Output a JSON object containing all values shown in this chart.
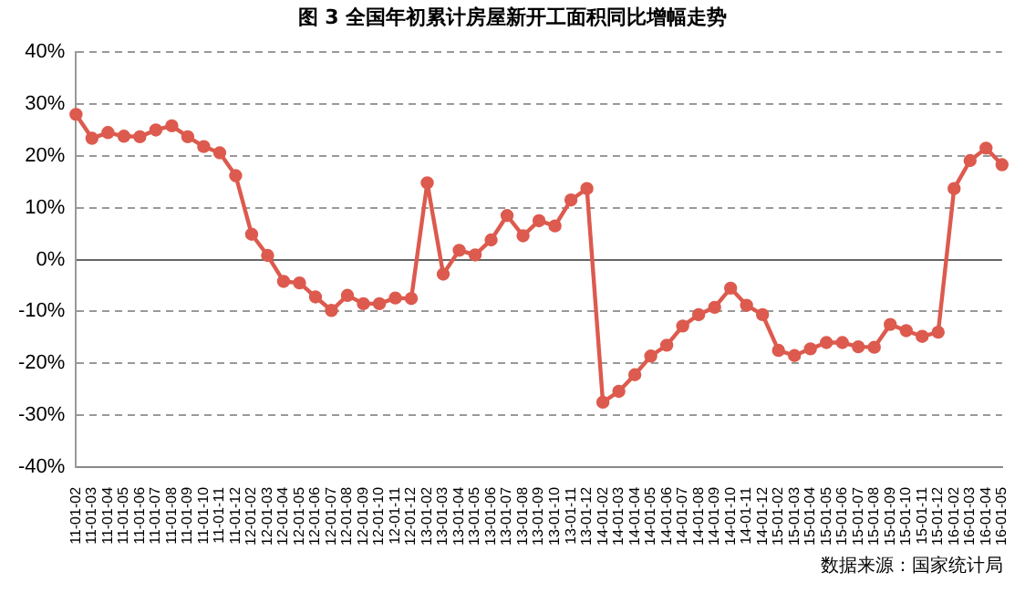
{
  "chart_data": {
    "type": "line",
    "title": "图 3  全国年初累计房屋新开工面积同比增幅走势",
    "categories": [
      "11-01-02",
      "11-01-03",
      "11-01-04",
      "11-01-05",
      "11-01-06",
      "11-01-07",
      "11-01-08",
      "11-01-09",
      "11-01-10",
      "11-01-11",
      "11-01-12",
      "12-01-02",
      "12-01-03",
      "12-01-04",
      "12-01-05",
      "12-01-06",
      "12-01-07",
      "12-01-08",
      "12-01-09",
      "12-01-10",
      "12-01-11",
      "12-01-12",
      "13-01-02",
      "13-01-03",
      "13-01-04",
      "13-01-05",
      "13-01-06",
      "13-01-07",
      "13-01-08",
      "13-01-09",
      "13-01-10",
      "13-01-11",
      "13-01-12",
      "14-01-02",
      "14-01-03",
      "14-01-04",
      "14-01-05",
      "14-01-06",
      "14-01-07",
      "14-01-08",
      "14-01-09",
      "14-01-10",
      "14-01-11",
      "14-01-12",
      "15-01-02",
      "15-01-03",
      "15-01-04",
      "15-01-05",
      "15-01-06",
      "15-01-07",
      "15-01-08",
      "15-01-09",
      "15-01-10",
      "15-01-11",
      "15-01-12",
      "16-01-02",
      "16-01-03",
      "16-01-04",
      "16-01-05"
    ],
    "series": [
      {
        "color": "#dd5a4e",
        "values": [
          28,
          23.4,
          24.5,
          23.8,
          23.7,
          25,
          25.8,
          23.7,
          21.8,
          20.6,
          16.2,
          4.9,
          0.8,
          -4.2,
          -4.5,
          -7.2,
          -9.8,
          -6.9,
          -8.5,
          -8.5,
          -7.4,
          -7.5,
          14.8,
          -2.8,
          1.8,
          0.9,
          3.8,
          8.5,
          4.6,
          7.5,
          6.5,
          11.5,
          13.7,
          -27.5,
          -25.4,
          -22.2,
          -18.6,
          -16.5,
          -12.8,
          -10.6,
          -9.2,
          -5.5,
          -8.8,
          -10.6,
          -17.5,
          -18.5,
          -17.2,
          -16,
          -16,
          -16.8,
          -16.9,
          -12.5,
          -13.7,
          -14.8,
          -14,
          13.7,
          19.1,
          21.5,
          18.3
        ]
      }
    ],
    "ylim": [
      -40,
      40
    ],
    "yticks": [
      {
        "value": -40,
        "label": "-40%"
      },
      {
        "value": -30,
        "label": "-30%"
      },
      {
        "value": -20,
        "label": "-20%"
      },
      {
        "value": -10,
        "label": "-10%"
      },
      {
        "value": 0,
        "label": "0%"
      },
      {
        "value": 10,
        "label": "10%"
      },
      {
        "value": 20,
        "label": "20%"
      },
      {
        "value": 30,
        "label": "30%"
      },
      {
        "value": 40,
        "label": "40%"
      }
    ],
    "grid": "y",
    "legend": false,
    "marker": "circle",
    "line_style": "solid",
    "annotations": [
      "数据来源：国家统计局"
    ]
  }
}
